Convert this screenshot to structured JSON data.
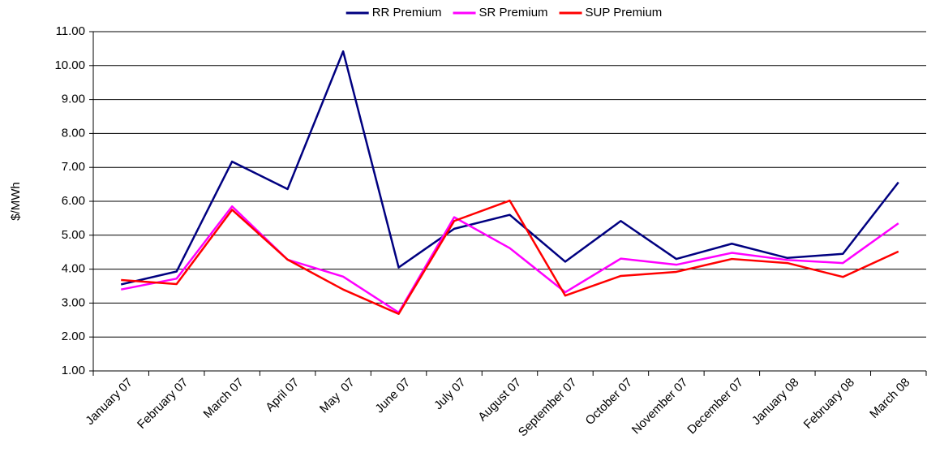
{
  "chart_data": {
    "type": "line",
    "y_label": "$/MWh",
    "categories": [
      "January 07",
      "February 07",
      "March 07",
      "April 07",
      "May  07",
      "June 07",
      "July 07",
      "August 07",
      "September 07",
      "October 07",
      "November 07",
      "December 07",
      "January 08",
      "February 08",
      "March 08"
    ],
    "series": [
      {
        "name": "RR Premium",
        "color": "#000080",
        "values": [
          3.55,
          3.93,
          7.17,
          6.36,
          10.42,
          4.05,
          5.19,
          5.6,
          4.22,
          5.42,
          4.3,
          4.75,
          4.33,
          4.45,
          6.56
        ]
      },
      {
        "name": "SR Premium",
        "color": "#ff00ff",
        "values": [
          3.4,
          3.72,
          5.85,
          4.28,
          3.78,
          2.72,
          5.53,
          4.62,
          3.32,
          4.31,
          4.13,
          4.48,
          4.27,
          4.18,
          5.35
        ]
      },
      {
        "name": "SUP Premium",
        "color": "#ff0000",
        "values": [
          3.68,
          3.56,
          5.75,
          4.28,
          3.4,
          2.68,
          5.42,
          6.02,
          3.22,
          3.8,
          3.92,
          4.3,
          4.18,
          3.77,
          4.52
        ]
      }
    ],
    "ylim": [
      1,
      11
    ],
    "yticks": [
      {
        "value": 1,
        "label": "1.00"
      },
      {
        "value": 2,
        "label": "2.00"
      },
      {
        "value": 3,
        "label": "3.00"
      },
      {
        "value": 4,
        "label": "4.00"
      },
      {
        "value": 5,
        "label": "5.00"
      },
      {
        "value": 6,
        "label": "6.00"
      },
      {
        "value": 7,
        "label": "7.00"
      },
      {
        "value": 8,
        "label": "8.00"
      },
      {
        "value": 9,
        "label": "9.00"
      },
      {
        "value": 10,
        "label": "10.00"
      },
      {
        "value": 11,
        "label": "11.00"
      }
    ],
    "grid": true,
    "legend": "top"
  }
}
